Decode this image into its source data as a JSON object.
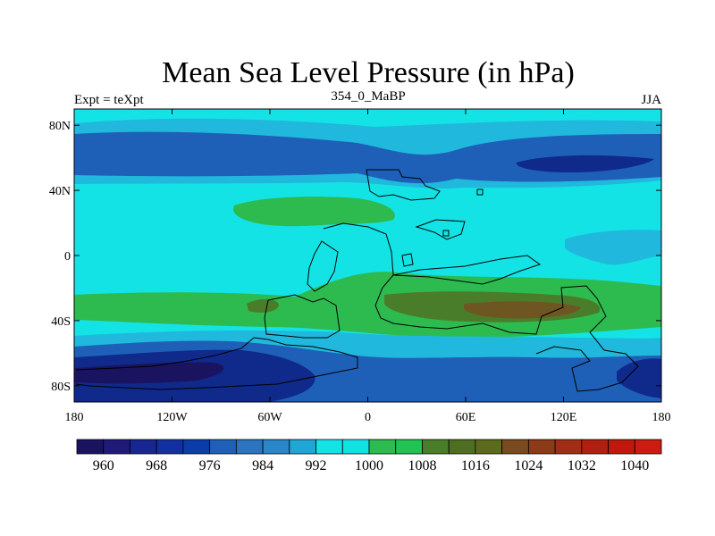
{
  "chart_data": {
    "type": "heatmap",
    "title": "Mean Sea Level Pressure (in hPa)",
    "left_string": "Expt = teXpt",
    "center_string": "354_0_MaBP",
    "right_string": "JJA",
    "x_ticks": [
      "180",
      "120W",
      "60W",
      "0",
      "60E",
      "120E",
      "180"
    ],
    "y_ticks": [
      "80N",
      "40N",
      "0",
      "40S",
      "80S"
    ],
    "xlim": [
      -180,
      180
    ],
    "ylim": [
      -90,
      90
    ],
    "colorbar_labels": [
      "960",
      "968",
      "976",
      "984",
      "992",
      "1000",
      "1008",
      "1016",
      "1024",
      "1032",
      "1040"
    ],
    "colors": {
      "deep_low": "#1a1460",
      "low": "#102a8c",
      "mid_low": "#1e60b8",
      "ocean_blue": "#2a86c8",
      "light_blue": "#20b8dc",
      "cyan": "#14e3e6",
      "green": "#2dbb50",
      "olive": "#4a7d2a",
      "brown": "#7a4a20",
      "high": "#cc1b10"
    }
  }
}
